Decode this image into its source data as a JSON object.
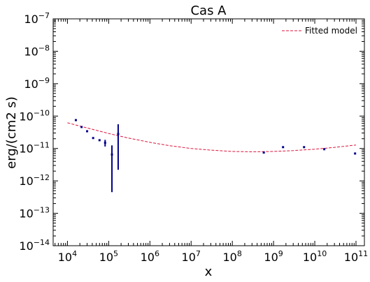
{
  "chart_data": {
    "type": "scatter",
    "title": "Cas A",
    "xlabel": "x",
    "ylabel": "erg/(cm2 s)",
    "xscale": "log",
    "yscale": "log",
    "xlim": [
      4500,
      160000000000.0
    ],
    "ylim": [
      1e-14,
      1e-07
    ],
    "x_ticks": [
      {
        "value": 10000.0,
        "base": "10",
        "exp": "4"
      },
      {
        "value": 100000.0,
        "base": "10",
        "exp": "5"
      },
      {
        "value": 1000000.0,
        "base": "10",
        "exp": "6"
      },
      {
        "value": 10000000.0,
        "base": "10",
        "exp": "7"
      },
      {
        "value": 100000000.0,
        "base": "10",
        "exp": "8"
      },
      {
        "value": 1000000000.0,
        "base": "10",
        "exp": "9"
      },
      {
        "value": 10000000000.0,
        "base": "10",
        "exp": "10"
      },
      {
        "value": 100000000000.0,
        "base": "10",
        "exp": "11"
      }
    ],
    "y_ticks": [
      {
        "value": 1e-14,
        "base": "10",
        "exp": "−14"
      },
      {
        "value": 1e-13,
        "base": "10",
        "exp": "−13"
      },
      {
        "value": 1e-12,
        "base": "10",
        "exp": "−12"
      },
      {
        "value": 1e-11,
        "base": "10",
        "exp": "−11"
      },
      {
        "value": 1e-10,
        "base": "10",
        "exp": "−10"
      },
      {
        "value": 1e-09,
        "base": "10",
        "exp": "−9"
      },
      {
        "value": 1e-08,
        "base": "10",
        "exp": "−8"
      },
      {
        "value": 1e-07,
        "base": "10",
        "exp": "−7"
      }
    ],
    "grid": false,
    "legend": {
      "position": "top-right",
      "entries": [
        {
          "label": "Fitted model",
          "style": "dashed",
          "color": "#dc143c"
        }
      ]
    },
    "colors": {
      "data": "#00008b",
      "model": "#dc143c"
    },
    "data_series": {
      "points": [
        {
          "x": 16000.0,
          "y": 7.5e-11
        },
        {
          "x": 22000.0,
          "y": 4.6e-11
        },
        {
          "x": 30000.0,
          "y": 3.4e-11
        },
        {
          "x": 42000.0,
          "y": 2.1e-11
        },
        {
          "x": 60000.0,
          "y": 1.8e-11
        },
        {
          "x": 82000.0,
          "y": 1.5e-11,
          "ylo": 1.15e-11,
          "yhi": 1.85e-11
        },
        {
          "x": 120000.0,
          "y": 6.5e-12,
          "ylo": 4.5e-13,
          "yhi": 1.25e-11
        },
        {
          "x": 170000.0,
          "y": 2.8e-11,
          "ylo": 2.2e-12,
          "yhi": 5.6e-11
        },
        {
          "x": 580000000.0,
          "y": 7.5e-12
        },
        {
          "x": 1700000000.0,
          "y": 1.1e-11
        },
        {
          "x": 5500000000.0,
          "y": 1.1e-11
        },
        {
          "x": 17000000000.0,
          "y": 9.5e-12
        },
        {
          "x": 95000000000.0,
          "y": 7e-12
        }
      ]
    },
    "model_series": {
      "name": "Fitted model",
      "x": [
        10000.0,
        30000.0,
        100000.0,
        300000.0,
        1000000.0,
        3000000.0,
        10000000.0,
        30000000.0,
        100000000.0,
        300000000.0,
        1000000000.0,
        3000000000.0,
        10000000000.0,
        30000000000.0,
        100000000000.0
      ],
      "y": [
        6.2e-11,
        4.3e-11,
        2.9e-11,
        2.1e-11,
        1.55e-11,
        1.22e-11,
        1e-11,
        8.9e-12,
        8.1e-12,
        7.9e-12,
        8.1e-12,
        8.6e-12,
        9.5e-12,
        1.08e-11,
        1.28e-11
      ]
    }
  }
}
